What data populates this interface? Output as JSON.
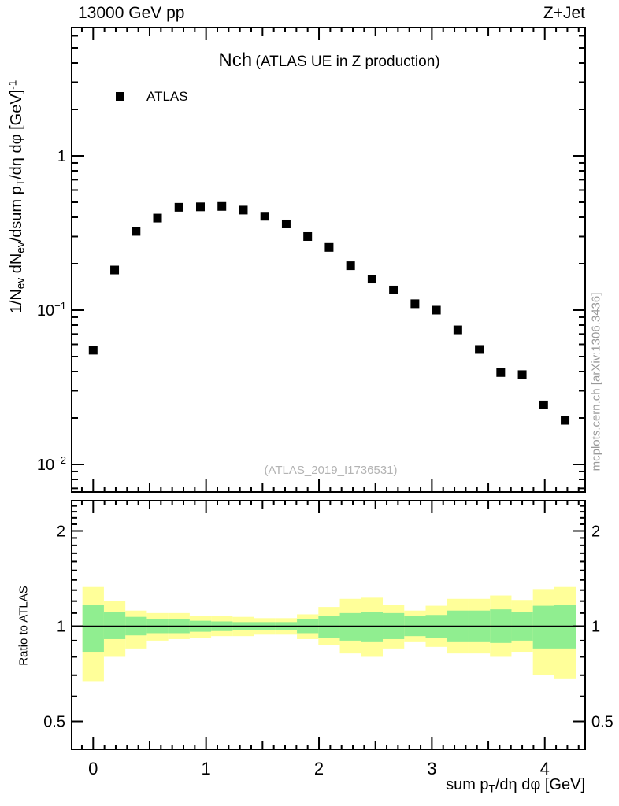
{
  "header": {
    "left": "13000 GeV pp",
    "right": "Z+Jet"
  },
  "title": {
    "main": "Nch",
    "sub": "(ATLAS UE in Z production)"
  },
  "legend": {
    "items": [
      {
        "label": "ATLAS",
        "marker": "filled-square",
        "color": "#000000"
      }
    ]
  },
  "watermark": "(ATLAS_2019_I1736531)",
  "side_caption": "mcplots.cern.ch [arXiv:1306.3436]",
  "colors": {
    "marker": "#000000",
    "band_yellow": "#ffff99",
    "band_green": "#90ee90",
    "frame": "#000000",
    "gray_text": "#999999"
  },
  "axes": {
    "x": {
      "label_parts": [
        [
          "sum p",
          "n"
        ],
        [
          "T",
          "sub"
        ],
        [
          "/dη dφ [GeV]",
          "n"
        ]
      ],
      "ticks": [
        {
          "value": 0,
          "label": "0"
        },
        {
          "value": 1,
          "label": "1"
        },
        {
          "value": 2,
          "label": "2"
        },
        {
          "value": 3,
          "label": "3"
        },
        {
          "value": 4,
          "label": "4"
        }
      ],
      "range": [
        -0.19,
        4.36
      ]
    },
    "main_y": {
      "label_parts": [
        [
          "1/N",
          "n"
        ],
        [
          "ev",
          "sub"
        ],
        [
          " dN",
          "n"
        ],
        [
          "ev",
          "sub"
        ],
        [
          "/dsum p",
          "n"
        ],
        [
          "T",
          "sub"
        ],
        [
          "/dη dφ  [GeV]",
          "n"
        ],
        [
          "-1",
          "sup"
        ]
      ],
      "scale": "log",
      "range": [
        0.0066,
        6.8
      ],
      "ticks": [
        {
          "value": 1,
          "base": "1",
          "exp": ""
        },
        {
          "value": 0.1,
          "base": "10",
          "exp": "−1"
        },
        {
          "value": 0.01,
          "base": "10",
          "exp": "−2"
        }
      ]
    },
    "ratio_y": {
      "label": "Ratio to ATLAS",
      "scale": "log",
      "range": [
        0.41,
        2.49
      ],
      "ticks": [
        {
          "value": 2,
          "label": "2"
        },
        {
          "value": 1,
          "label": "1"
        },
        {
          "value": 0.5,
          "label": "0.5"
        }
      ]
    }
  },
  "chart_data": {
    "type": "scatter",
    "title": "Nch (ATLAS UE in Z production)",
    "xlabel": "sum pT/deta dphi [GeV]",
    "ylabel": "1/Nev dNev/dsum pT/deta dphi [GeV]^-1",
    "xlim": [
      -0.19,
      4.36
    ],
    "main_ylim_log": [
      0.0066,
      6.8
    ],
    "ratio_ylim_log": [
      0.41,
      2.49
    ],
    "legend_position": "top-left",
    "grid": false,
    "series": [
      {
        "name": "ATLAS",
        "marker": "filled-square",
        "color": "#000000",
        "x": [
          0.0,
          0.19,
          0.38,
          0.57,
          0.76,
          0.95,
          1.14,
          1.33,
          1.52,
          1.71,
          1.9,
          2.09,
          2.28,
          2.47,
          2.66,
          2.85,
          3.04,
          3.23,
          3.42,
          3.61,
          3.8,
          3.99,
          4.18
        ],
        "y": [
          0.055,
          0.182,
          0.324,
          0.395,
          0.464,
          0.467,
          0.47,
          0.445,
          0.406,
          0.362,
          0.3,
          0.255,
          0.194,
          0.159,
          0.135,
          0.11,
          0.1,
          0.0745,
          0.0556,
          0.0394,
          0.0382,
          0.0243,
          0.0193
        ]
      }
    ],
    "ratio_reference_line": 1,
    "ratio_bands": {
      "description": "MC uncertainty bands in ratio panel: outer yellow, inner green, per x-bin",
      "bin_half_width": 0.095,
      "centers": [
        0.0,
        0.19,
        0.38,
        0.57,
        0.76,
        0.95,
        1.14,
        1.33,
        1.52,
        1.71,
        1.9,
        2.09,
        2.28,
        2.47,
        2.66,
        2.85,
        3.04,
        3.23,
        3.42,
        3.61,
        3.8,
        3.99,
        4.18
      ],
      "yellow_hi": [
        1.33,
        1.2,
        1.12,
        1.1,
        1.1,
        1.08,
        1.08,
        1.07,
        1.06,
        1.06,
        1.09,
        1.15,
        1.22,
        1.23,
        1.17,
        1.12,
        1.16,
        1.22,
        1.22,
        1.25,
        1.21,
        1.31,
        1.33
      ],
      "yellow_lo": [
        0.67,
        0.8,
        0.85,
        0.9,
        0.91,
        0.92,
        0.93,
        0.93,
        0.94,
        0.94,
        0.91,
        0.87,
        0.82,
        0.8,
        0.85,
        0.89,
        0.86,
        0.82,
        0.82,
        0.8,
        0.83,
        0.7,
        0.68
      ],
      "green_hi": [
        1.17,
        1.11,
        1.07,
        1.05,
        1.05,
        1.04,
        1.035,
        1.03,
        1.03,
        1.03,
        1.05,
        1.08,
        1.1,
        1.11,
        1.1,
        1.075,
        1.085,
        1.12,
        1.12,
        1.13,
        1.11,
        1.16,
        1.17
      ],
      "green_lo": [
        0.83,
        0.91,
        0.935,
        0.95,
        0.95,
        0.96,
        0.965,
        0.97,
        0.97,
        0.97,
        0.95,
        0.92,
        0.9,
        0.89,
        0.91,
        0.93,
        0.92,
        0.89,
        0.89,
        0.885,
        0.9,
        0.85,
        0.85
      ]
    }
  }
}
